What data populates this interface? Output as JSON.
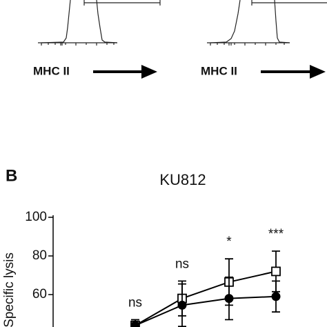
{
  "flow_panels": {
    "axis_labels": [
      "MHC II",
      "MHC II"
    ]
  },
  "panel_label": "B",
  "chart_data": {
    "type": "line",
    "title": "KU812",
    "ylabel": "Specific lysis",
    "categories": [
      null,
      null,
      null,
      null
    ],
    "series": [
      {
        "name": null,
        "marker": "square",
        "color": "#000000",
        "values": [
          44,
          58,
          66.5,
          72
        ],
        "errors": [
          3,
          9,
          12,
          10.5
        ]
      },
      {
        "name": null,
        "marker": "circle",
        "color": "#000000",
        "values": [
          44,
          54.5,
          58,
          59
        ],
        "errors": [
          3,
          11,
          11,
          8
        ]
      }
    ],
    "annotations": [
      "ns",
      "ns",
      "*",
      "***"
    ],
    "ylim": [
      40,
      100
    ],
    "yticks": [
      60,
      80,
      100
    ]
  }
}
